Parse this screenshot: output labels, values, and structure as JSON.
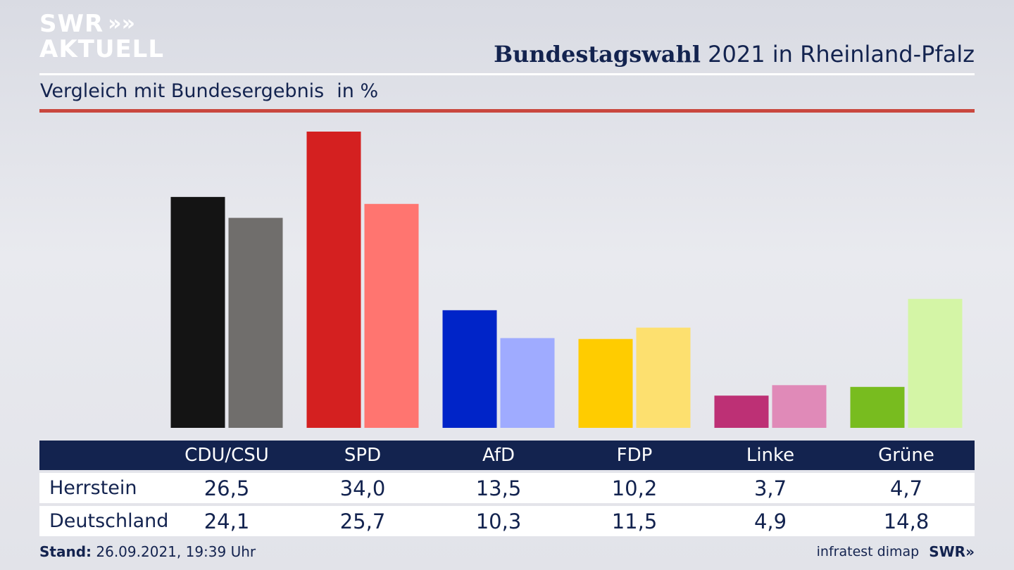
{
  "brand": {
    "line1": "SWR",
    "line2": "AKTUELL",
    "chevrons": "»"
  },
  "header": {
    "title_bold": "Bundestagswahl",
    "title_rest": "2021 in Rheinland-Pfalz",
    "subtitle": "Vergleich mit Bundesergebnis",
    "unit": "in %"
  },
  "colors": {
    "navy": "#13234f",
    "accent_red": "#c9473e"
  },
  "chart_data": {
    "type": "bar",
    "categories": [
      "CDU/CSU",
      "SPD",
      "AfD",
      "FDP",
      "Linke",
      "Grüne"
    ],
    "series": [
      {
        "name": "Herrstein",
        "values": [
          26.5,
          34.0,
          13.5,
          10.2,
          3.7,
          4.7
        ],
        "colors": [
          "#141414",
          "#d42020",
          "#0024c8",
          "#ffcc00",
          "#bd3075",
          "#78bc1f"
        ]
      },
      {
        "name": "Deutschland",
        "values": [
          24.1,
          25.7,
          10.3,
          11.5,
          4.9,
          14.8
        ],
        "colors": [
          "#706e6c",
          "#ff7570",
          "#9fabff",
          "#fde06f",
          "#e08ab8",
          "#d4f5a6"
        ]
      }
    ],
    "ylim": [
      0,
      34.0
    ]
  },
  "table": {
    "headers": [
      "CDU/CSU",
      "SPD",
      "AfD",
      "FDP",
      "Linke",
      "Grüne"
    ],
    "rows": [
      {
        "label": "Herrstein",
        "values": [
          "26,5",
          "34,0",
          "13,5",
          "10,2",
          "3,7",
          "4,7"
        ]
      },
      {
        "label": "Deutschland",
        "values": [
          "24,1",
          "25,7",
          "10,3",
          "11,5",
          "4,9",
          "14,8"
        ]
      }
    ]
  },
  "footer": {
    "stand_label": "Stand:",
    "stand_value": "26.09.2021, 19:39 Uhr",
    "source": "infratest dimap",
    "brand": "SWR»"
  }
}
